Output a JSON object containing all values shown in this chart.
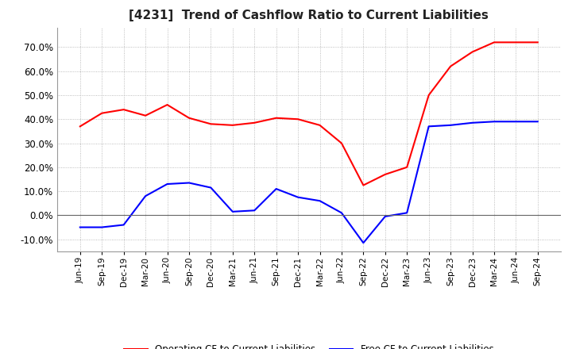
{
  "title": "[4231]  Trend of Cashflow Ratio to Current Liabilities",
  "title_fontsize": 11,
  "x_labels": [
    "Jun-19",
    "Sep-19",
    "Dec-19",
    "Mar-20",
    "Jun-20",
    "Sep-20",
    "Dec-20",
    "Mar-21",
    "Jun-21",
    "Sep-21",
    "Dec-21",
    "Mar-22",
    "Jun-22",
    "Sep-22",
    "Dec-22",
    "Mar-23",
    "Jun-23",
    "Sep-23",
    "Dec-23",
    "Mar-24",
    "Jun-24",
    "Sep-24"
  ],
  "operating_cf": [
    37.0,
    42.5,
    44.0,
    41.5,
    46.0,
    40.5,
    38.0,
    37.5,
    38.5,
    40.5,
    40.0,
    37.5,
    30.0,
    12.5,
    17.0,
    20.0,
    50.0,
    62.0,
    68.0,
    72.0,
    72.0,
    72.0
  ],
  "free_cf": [
    -5.0,
    -5.0,
    -4.0,
    8.0,
    13.0,
    13.5,
    11.5,
    1.5,
    2.0,
    11.0,
    7.5,
    6.0,
    1.0,
    -11.5,
    -0.5,
    1.0,
    37.0,
    37.5,
    38.5,
    39.0,
    39.0,
    39.0
  ],
  "operating_color": "#FF0000",
  "free_color": "#0000FF",
  "ylim": [
    -15,
    78
  ],
  "yticks": [
    -10,
    0,
    10,
    20,
    30,
    40,
    50,
    60,
    70
  ],
  "background_color": "#FFFFFF",
  "grid_color": "#AAAAAA",
  "legend_labels": [
    "Operating CF to Current Liabilities",
    "Free CF to Current Liabilities"
  ]
}
